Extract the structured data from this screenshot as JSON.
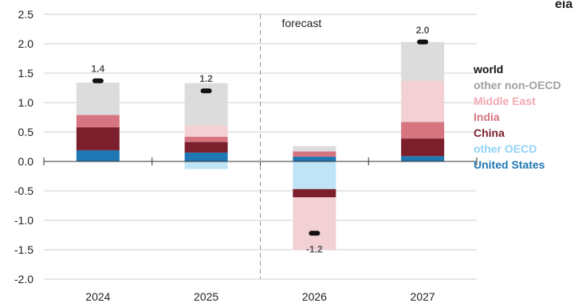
{
  "corner_text": "eia",
  "chart_data": {
    "type": "bar",
    "stacked": true,
    "categories": [
      "2024",
      "2025",
      "2026",
      "2027"
    ],
    "ylim": [
      -2.0,
      2.5
    ],
    "yticks": [
      "-2.0",
      "-1.5",
      "-1.0",
      "-0.5",
      "0.0",
      "0.5",
      "1.0",
      "1.5",
      "2.0",
      "2.5"
    ],
    "ytick_values": [
      -2.0,
      -1.5,
      -1.0,
      -0.5,
      0.0,
      0.5,
      1.0,
      1.5,
      2.0,
      2.5
    ],
    "grid": true,
    "legend_position": "right",
    "forecast_divider_after": "2025",
    "forecast_label": "forecast",
    "series": [
      {
        "name": "United States",
        "color": "#1f77b4",
        "values": [
          0.19,
          0.15,
          0.08,
          0.09
        ]
      },
      {
        "name": "other OECD",
        "color": "#bfe3f7",
        "values": [
          0.0,
          -0.13,
          -0.47,
          0.0
        ]
      },
      {
        "name": "China",
        "color": "#7b1f2c",
        "values": [
          0.39,
          0.18,
          -0.14,
          0.3
        ]
      },
      {
        "name": "India",
        "color": "#d6747f",
        "values": [
          0.21,
          0.09,
          0.09,
          0.28
        ]
      },
      {
        "name": "Middle East",
        "color": "#f3d0d4",
        "values": [
          0.0,
          0.19,
          -0.89,
          0.7
        ]
      },
      {
        "name": "other non-OECD",
        "color": "#dcdcdc",
        "values": [
          0.55,
          0.72,
          0.09,
          0.66
        ]
      }
    ],
    "world": {
      "name": "world",
      "values": [
        1.37,
        1.2,
        -1.22,
        2.03
      ],
      "labels": [
        "1.4",
        "1.2",
        "-1.2",
        "2.0"
      ]
    },
    "legend_order": [
      {
        "name": "world",
        "color": "#111111"
      },
      {
        "name": "other non-OECD",
        "color": "#a0a0a0"
      },
      {
        "name": "Middle East",
        "color": "#f2a9b1"
      },
      {
        "name": "India",
        "color": "#d6747f"
      },
      {
        "name": "China",
        "color": "#7b1f2c"
      },
      {
        "name": "other OECD",
        "color": "#8fd3f4"
      },
      {
        "name": "United States",
        "color": "#1f77b4"
      }
    ]
  }
}
